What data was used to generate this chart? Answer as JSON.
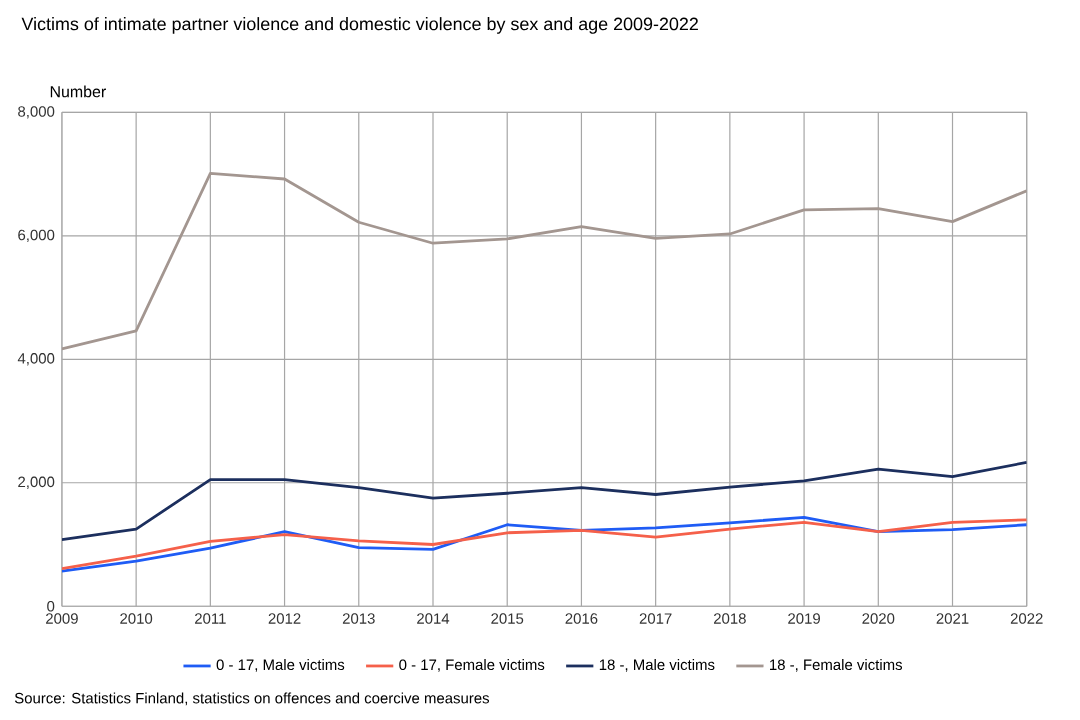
{
  "chart_data": {
    "type": "line",
    "title": "Victims of intimate partner violence and domestic violence by sex and age 2009-2022",
    "ylabel": "Number",
    "x": [
      2009,
      2010,
      2011,
      2012,
      2013,
      2014,
      2015,
      2016,
      2017,
      2018,
      2019,
      2020,
      2021,
      2022
    ],
    "series": [
      {
        "name": "0 - 17, Male victims",
        "color": "#1f5cf5",
        "values": [
          570,
          730,
          940,
          1210,
          950,
          920,
          1320,
          1230,
          1270,
          1350,
          1440,
          1210,
          1240,
          1320
        ]
      },
      {
        "name": "0 - 17, Female victims",
        "color": "#f5604a",
        "values": [
          610,
          810,
          1050,
          1160,
          1060,
          1000,
          1190,
          1230,
          1120,
          1250,
          1360,
          1210,
          1360,
          1400
        ]
      },
      {
        "name": "18 -, Male victims",
        "color": "#1c2f5e",
        "values": [
          1080,
          1250,
          2050,
          2050,
          1920,
          1750,
          1830,
          1920,
          1810,
          1930,
          2030,
          2220,
          2100,
          2330
        ]
      },
      {
        "name": "18 -, Female victims",
        "color": "#a39690",
        "values": [
          4170,
          4460,
          7010,
          6920,
          6220,
          5880,
          5950,
          6150,
          5960,
          6030,
          6420,
          6440,
          6230,
          6730
        ]
      }
    ],
    "xlim": [
      2009,
      2022
    ],
    "xticks": [
      2009,
      2010,
      2011,
      2012,
      2013,
      2014,
      2015,
      2016,
      2017,
      2018,
      2019,
      2020,
      2021,
      2022
    ],
    "ylim": [
      0,
      8000
    ],
    "yticks": [
      0,
      {
        "value": 2000,
        "label": "2,000"
      },
      {
        "value": 4000,
        "label": "4,000"
      },
      {
        "value": 6000,
        "label": "6,000"
      },
      {
        "value": 8000,
        "label": "8,000"
      }
    ],
    "grid": true,
    "legend": "bottom",
    "marker": "none",
    "line_style": "solid",
    "annotations": [
      "Source: Statistics Finland, statistics on offences and coercive measures"
    ]
  }
}
